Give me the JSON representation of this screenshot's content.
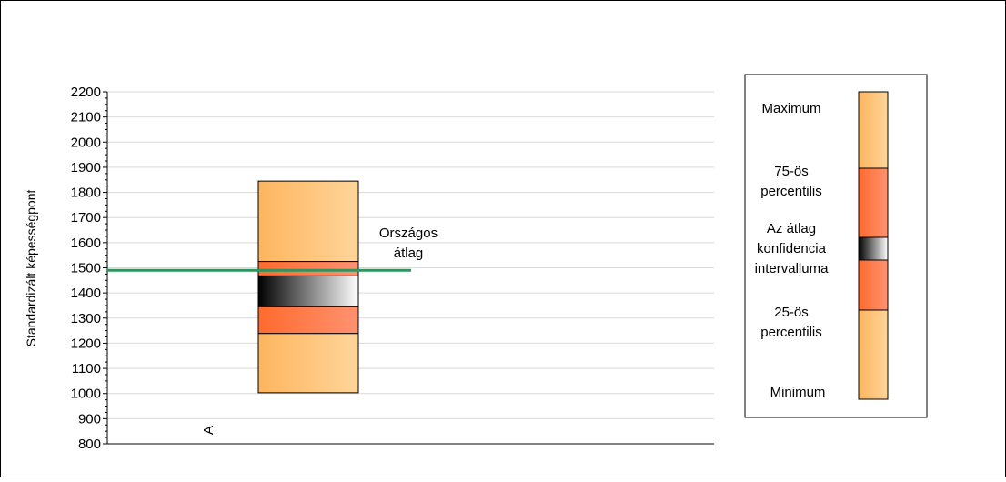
{
  "chart_data": {
    "type": "box",
    "ylabel": "Standardizált képességpont",
    "ylim": [
      800,
      2200
    ],
    "yticks": [
      800,
      900,
      1000,
      1100,
      1200,
      1300,
      1400,
      1500,
      1600,
      1700,
      1800,
      1900,
      2000,
      2100,
      2200
    ],
    "grid": true,
    "categories": [
      "A"
    ],
    "boxes": [
      {
        "category": "A",
        "minimum": 1003,
        "p25": 1239,
        "ci_low": 1345,
        "ci_high": 1468,
        "p75": 1525,
        "maximum": 1845
      }
    ],
    "reference_line": {
      "label_line1": "Országos",
      "label_line2": "átlag",
      "value": 1490
    },
    "legend": {
      "position": "right",
      "items": [
        {
          "line1": "Maximum"
        },
        {
          "line1": "75-ös",
          "line2": "percentilis"
        },
        {
          "line1": "Az átlag",
          "line2": "konfidencia",
          "line3": "intervalluma"
        },
        {
          "line1": "25-ös",
          "line2": "percentilis"
        },
        {
          "line1": "Minimum"
        }
      ]
    },
    "colors": {
      "outer_light": "#FFD59A",
      "outer_dark": "#FDB55F",
      "inner_dark": "#FF6A2E",
      "inner_light": "#FF9270",
      "ci_dark": "#000000",
      "ci_light": "#FFFFFF",
      "reference_line": "#2E9460",
      "gridline": "#D9D9D9"
    }
  }
}
